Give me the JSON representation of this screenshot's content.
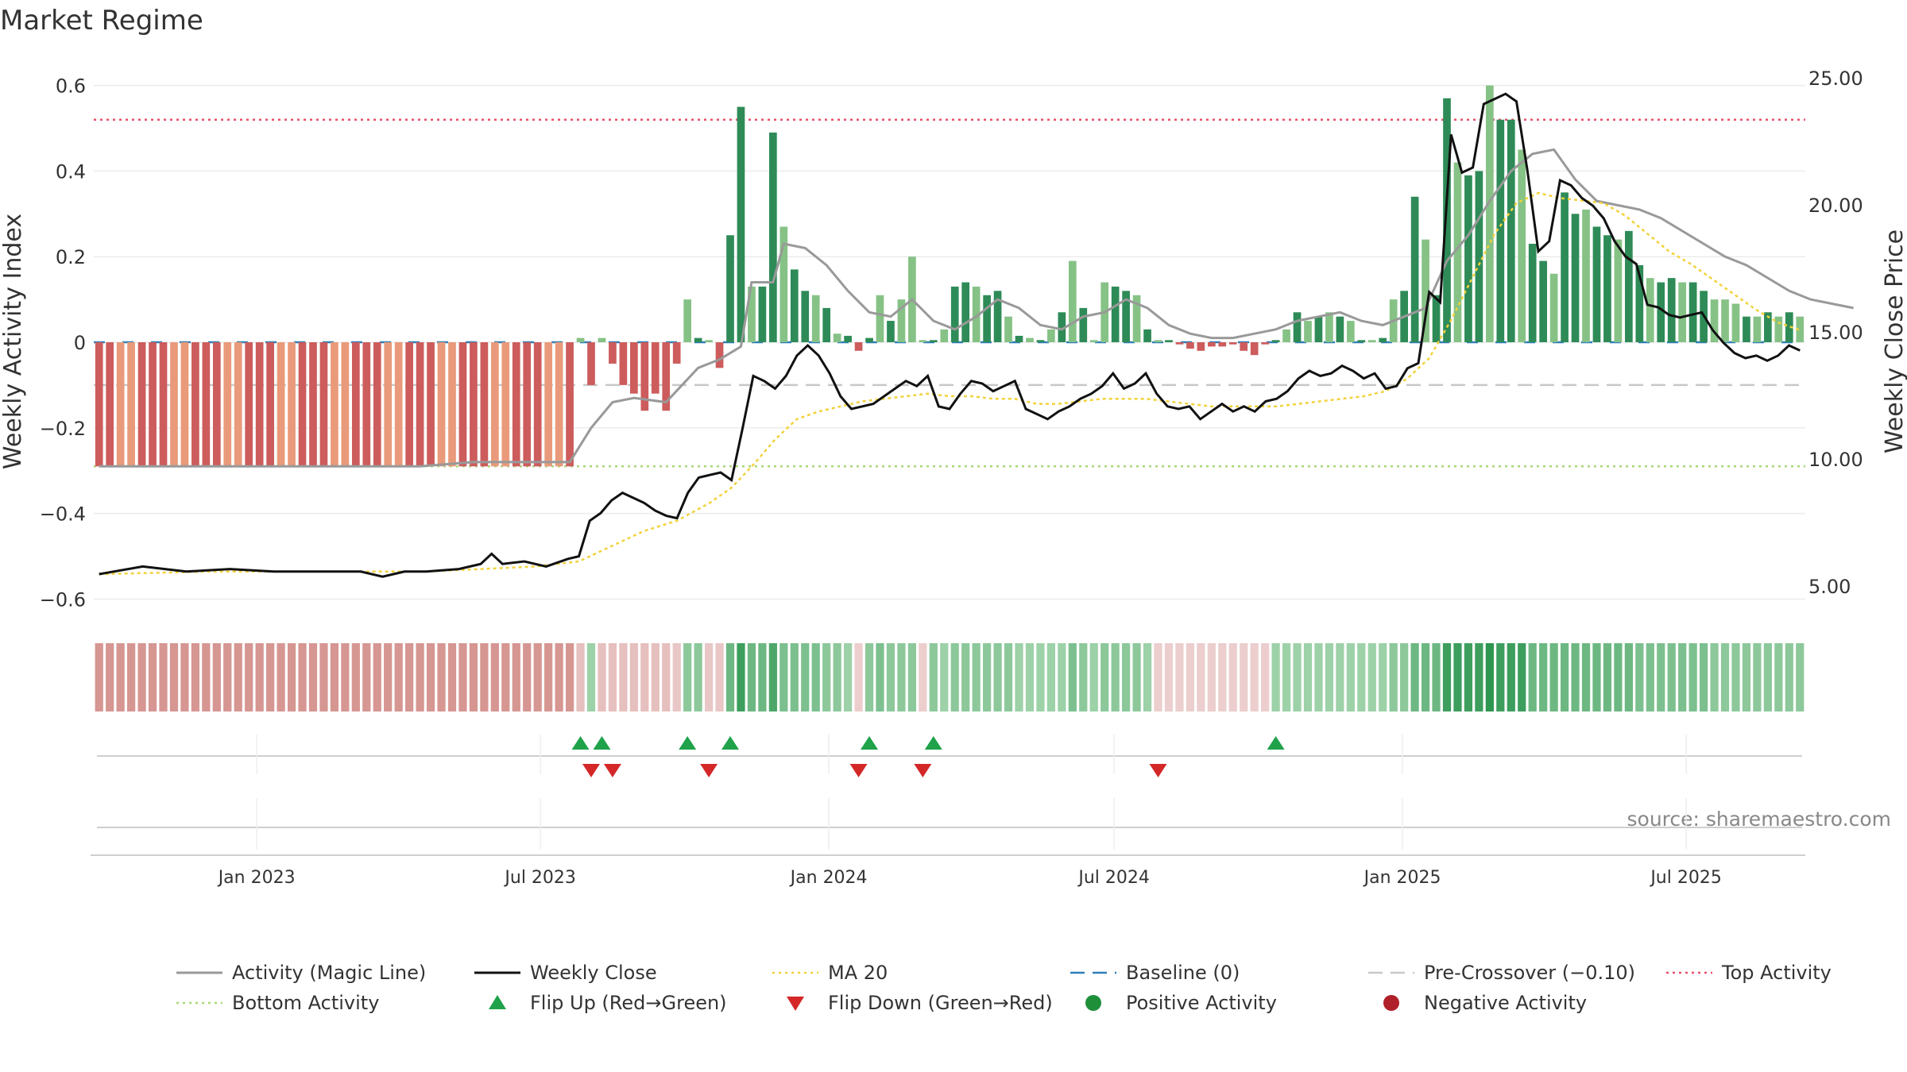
{
  "chart_data": {
    "type": "bar",
    "title": "Market Regime",
    "source": "source: sharemaestro.com",
    "x_ticks": [
      "Jan 2023",
      "Jul 2023",
      "Jan 2024",
      "Jul 2024",
      "Jan 2025",
      "Jul 2025"
    ],
    "x_range": [
      "2022-09-19",
      "2025-09-15"
    ],
    "axes": {
      "left": {
        "label": "Weekly Activity Index",
        "ticks": [
          "0.6",
          "0.4",
          "0.2",
          "0",
          "−0.2",
          "−0.4",
          "−0.6"
        ],
        "ylim": [
          -0.65,
          0.65
        ]
      },
      "right": {
        "label": "Weekly Close Price",
        "ticks": [
          "25.00",
          "20.00",
          "15.00",
          "10.00",
          "5.00"
        ],
        "ylim": [
          4.0,
          26.2
        ]
      }
    },
    "reference_lines": {
      "top_activity": 0.52,
      "bottom_activity": -0.29,
      "pre_crossover": -0.1,
      "baseline": 0
    },
    "activity_weekly": [
      -0.29,
      -0.29,
      -0.29,
      -0.29,
      -0.29,
      -0.29,
      -0.29,
      -0.29,
      -0.29,
      -0.29,
      -0.29,
      -0.29,
      -0.29,
      -0.29,
      -0.29,
      -0.29,
      -0.29,
      -0.29,
      -0.29,
      -0.29,
      -0.29,
      -0.29,
      -0.29,
      -0.29,
      -0.29,
      -0.29,
      -0.29,
      -0.29,
      -0.29,
      -0.29,
      -0.29,
      -0.29,
      -0.29,
      -0.29,
      -0.29,
      -0.29,
      -0.29,
      -0.29,
      -0.29,
      -0.29,
      -0.29,
      -0.29,
      -0.29,
      -0.29,
      -0.29,
      0.01,
      -0.1,
      0.01,
      -0.05,
      -0.1,
      -0.12,
      -0.16,
      -0.12,
      -0.16,
      -0.05,
      0.1,
      0.01,
      0.005,
      -0.06,
      0.25,
      0.55,
      0.13,
      0.13,
      0.49,
      0.27,
      0.17,
      0.12,
      0.11,
      0.08,
      0.02,
      0.015,
      -0.02,
      0.01,
      0.11,
      0.05,
      0.1,
      0.2,
      0.005,
      0.005,
      0.03,
      0.13,
      0.14,
      0.13,
      0.11,
      0.12,
      0.06,
      0.015,
      0.01,
      0.005,
      0.03,
      0.07,
      0.19,
      0.08,
      0.005,
      0.14,
      0.13,
      0.12,
      0.11,
      0.03,
      0.005,
      0.005,
      -0.005,
      -0.015,
      -0.02,
      -0.01,
      -0.01,
      -0.005,
      -0.02,
      -0.03,
      -0.005,
      0.005,
      0.03,
      0.07,
      0.05,
      0.06,
      0.07,
      0.06,
      0.05,
      0.005,
      0.005,
      0.01,
      0.1,
      0.12,
      0.34,
      0.24,
      0.11,
      0.57,
      0.42,
      0.39,
      0.4,
      0.6,
      0.52,
      0.52,
      0.45,
      0.23,
      0.19,
      0.16,
      0.35,
      0.3,
      0.31,
      0.27,
      0.25,
      0.24,
      0.26,
      0.18,
      0.15,
      0.14,
      0.15,
      0.14,
      0.14,
      0.12,
      0.1,
      0.1,
      0.09,
      0.06,
      0.06,
      0.07,
      0.06,
      0.07,
      0.06
    ],
    "magic_line": [
      [
        0,
        -0.29
      ],
      [
        10,
        -0.29
      ],
      [
        20,
        -0.29
      ],
      [
        30,
        -0.29
      ],
      [
        35,
        -0.28
      ],
      [
        40,
        -0.28
      ],
      [
        44,
        -0.28
      ],
      [
        46,
        -0.2
      ],
      [
        48,
        -0.14
      ],
      [
        50,
        -0.13
      ],
      [
        53,
        -0.14
      ],
      [
        56,
        -0.06
      ],
      [
        58,
        -0.04
      ],
      [
        60,
        -0.01
      ],
      [
        61,
        0.14
      ],
      [
        63,
        0.14
      ],
      [
        64,
        0.23
      ],
      [
        66,
        0.22
      ],
      [
        68,
        0.18
      ],
      [
        70,
        0.12
      ],
      [
        72,
        0.07
      ],
      [
        74,
        0.06
      ],
      [
        76,
        0.1
      ],
      [
        78,
        0.05
      ],
      [
        80,
        0.03
      ],
      [
        82,
        0.06
      ],
      [
        84,
        0.1
      ],
      [
        86,
        0.08
      ],
      [
        88,
        0.04
      ],
      [
        90,
        0.03
      ],
      [
        92,
        0.06
      ],
      [
        94,
        0.07
      ],
      [
        96,
        0.1
      ],
      [
        98,
        0.08
      ],
      [
        100,
        0.04
      ],
      [
        102,
        0.02
      ],
      [
        104,
        0.01
      ],
      [
        106,
        0.01
      ],
      [
        108,
        0.02
      ],
      [
        110,
        0.03
      ],
      [
        112,
        0.05
      ],
      [
        114,
        0.06
      ],
      [
        116,
        0.07
      ],
      [
        118,
        0.05
      ],
      [
        120,
        0.04
      ],
      [
        122,
        0.06
      ],
      [
        124,
        0.08
      ],
      [
        126,
        0.19
      ],
      [
        128,
        0.25
      ],
      [
        130,
        0.33
      ],
      [
        132,
        0.4
      ],
      [
        134,
        0.44
      ],
      [
        136,
        0.45
      ],
      [
        138,
        0.38
      ],
      [
        140,
        0.33
      ],
      [
        142,
        0.32
      ],
      [
        144,
        0.31
      ],
      [
        146,
        0.29
      ],
      [
        148,
        0.26
      ],
      [
        150,
        0.23
      ],
      [
        152,
        0.2
      ],
      [
        154,
        0.18
      ],
      [
        156,
        0.15
      ],
      [
        158,
        0.12
      ],
      [
        160,
        0.1
      ],
      [
        162,
        0.09
      ],
      [
        164,
        0.08
      ]
    ],
    "weekly_close": [
      [
        0,
        5.5
      ],
      [
        4,
        5.8
      ],
      [
        8,
        5.6
      ],
      [
        12,
        5.7
      ],
      [
        16,
        5.6
      ],
      [
        20,
        5.6
      ],
      [
        24,
        5.6
      ],
      [
        26,
        5.4
      ],
      [
        28,
        5.6
      ],
      [
        30,
        5.6
      ],
      [
        33,
        5.7
      ],
      [
        35,
        5.9
      ],
      [
        36,
        6.3
      ],
      [
        37,
        5.9
      ],
      [
        39,
        6.0
      ],
      [
        41,
        5.8
      ],
      [
        43,
        6.1
      ],
      [
        44,
        6.2
      ],
      [
        45,
        7.6
      ],
      [
        46,
        7.9
      ],
      [
        47,
        8.4
      ],
      [
        48,
        8.7
      ],
      [
        49,
        8.5
      ],
      [
        50,
        8.3
      ],
      [
        51,
        8.0
      ],
      [
        52,
        7.8
      ],
      [
        53,
        7.7
      ],
      [
        54,
        8.7
      ],
      [
        55,
        9.3
      ],
      [
        56,
        9.4
      ],
      [
        57,
        9.5
      ],
      [
        58,
        9.2
      ],
      [
        59,
        11.2
      ],
      [
        60,
        13.3
      ],
      [
        61,
        13.1
      ],
      [
        62,
        12.8
      ],
      [
        63,
        13.3
      ],
      [
        64,
        14.1
      ],
      [
        65,
        14.5
      ],
      [
        66,
        14.1
      ],
      [
        67,
        13.4
      ],
      [
        68,
        12.5
      ],
      [
        69,
        12.0
      ],
      [
        70,
        12.1
      ],
      [
        71,
        12.2
      ],
      [
        72,
        12.5
      ],
      [
        73,
        12.8
      ],
      [
        74,
        13.1
      ],
      [
        75,
        12.9
      ],
      [
        76,
        13.3
      ],
      [
        77,
        12.1
      ],
      [
        78,
        12.0
      ],
      [
        79,
        12.6
      ],
      [
        80,
        13.1
      ],
      [
        81,
        13.0
      ],
      [
        82,
        12.7
      ],
      [
        83,
        12.9
      ],
      [
        84,
        13.1
      ],
      [
        85,
        12.0
      ],
      [
        86,
        11.8
      ],
      [
        87,
        11.6
      ],
      [
        88,
        11.9
      ],
      [
        89,
        12.1
      ],
      [
        90,
        12.4
      ],
      [
        91,
        12.6
      ],
      [
        92,
        12.9
      ],
      [
        93,
        13.4
      ],
      [
        94,
        12.8
      ],
      [
        95,
        13.0
      ],
      [
        96,
        13.4
      ],
      [
        97,
        12.6
      ],
      [
        98,
        12.1
      ],
      [
        99,
        12.0
      ],
      [
        100,
        12.1
      ],
      [
        101,
        11.6
      ],
      [
        102,
        11.9
      ],
      [
        103,
        12.2
      ],
      [
        104,
        11.9
      ],
      [
        105,
        12.1
      ],
      [
        106,
        11.9
      ],
      [
        107,
        12.3
      ],
      [
        108,
        12.4
      ],
      [
        109,
        12.7
      ],
      [
        110,
        13.2
      ],
      [
        111,
        13.5
      ],
      [
        112,
        13.3
      ],
      [
        113,
        13.4
      ],
      [
        114,
        13.7
      ],
      [
        115,
        13.5
      ],
      [
        116,
        13.2
      ],
      [
        117,
        13.4
      ],
      [
        118,
        12.8
      ],
      [
        119,
        12.9
      ],
      [
        120,
        13.6
      ],
      [
        121,
        13.8
      ],
      [
        122,
        16.6
      ],
      [
        123,
        16.2
      ],
      [
        124,
        22.8
      ],
      [
        125,
        21.3
      ],
      [
        126,
        21.5
      ],
      [
        127,
        24.0
      ],
      [
        128,
        24.2
      ],
      [
        129,
        24.4
      ],
      [
        130,
        24.1
      ],
      [
        131,
        21.4
      ],
      [
        132,
        18.2
      ],
      [
        133,
        18.6
      ],
      [
        134,
        21.0
      ],
      [
        135,
        20.8
      ],
      [
        136,
        20.3
      ],
      [
        137,
        20.0
      ],
      [
        138,
        19.5
      ],
      [
        139,
        18.6
      ],
      [
        140,
        18.0
      ],
      [
        141,
        17.7
      ],
      [
        142,
        16.1
      ],
      [
        143,
        16.0
      ],
      [
        144,
        15.7
      ],
      [
        145,
        15.6
      ],
      [
        146,
        15.7
      ],
      [
        147,
        15.8
      ],
      [
        148,
        15.1
      ],
      [
        149,
        14.6
      ],
      [
        150,
        14.2
      ],
      [
        151,
        14.0
      ],
      [
        152,
        14.1
      ],
      [
        153,
        13.9
      ],
      [
        154,
        14.1
      ],
      [
        155,
        14.5
      ],
      [
        156,
        14.3
      ]
    ],
    "ma20": [
      [
        0,
        5.5
      ],
      [
        10,
        5.6
      ],
      [
        20,
        5.6
      ],
      [
        30,
        5.6
      ],
      [
        40,
        5.8
      ],
      [
        44,
        6.0
      ],
      [
        47,
        6.6
      ],
      [
        50,
        7.2
      ],
      [
        53,
        7.6
      ],
      [
        56,
        8.3
      ],
      [
        58,
        8.9
      ],
      [
        60,
        9.8
      ],
      [
        62,
        10.8
      ],
      [
        64,
        11.6
      ],
      [
        66,
        11.9
      ],
      [
        68,
        12.1
      ],
      [
        70,
        12.3
      ],
      [
        72,
        12.4
      ],
      [
        74,
        12.5
      ],
      [
        76,
        12.6
      ],
      [
        78,
        12.5
      ],
      [
        80,
        12.5
      ],
      [
        82,
        12.4
      ],
      [
        84,
        12.4
      ],
      [
        86,
        12.2
      ],
      [
        88,
        12.2
      ],
      [
        90,
        12.3
      ],
      [
        92,
        12.4
      ],
      [
        94,
        12.4
      ],
      [
        96,
        12.4
      ],
      [
        98,
        12.3
      ],
      [
        100,
        12.2
      ],
      [
        102,
        12.1
      ],
      [
        104,
        12.1
      ],
      [
        106,
        12.1
      ],
      [
        108,
        12.1
      ],
      [
        110,
        12.2
      ],
      [
        112,
        12.3
      ],
      [
        114,
        12.4
      ],
      [
        116,
        12.5
      ],
      [
        118,
        12.7
      ],
      [
        120,
        13.2
      ],
      [
        122,
        14.0
      ],
      [
        124,
        15.5
      ],
      [
        126,
        17.2
      ],
      [
        128,
        18.9
      ],
      [
        130,
        20.1
      ],
      [
        132,
        20.5
      ],
      [
        134,
        20.3
      ],
      [
        136,
        20.2
      ],
      [
        138,
        20.1
      ],
      [
        140,
        19.6
      ],
      [
        142,
        18.9
      ],
      [
        144,
        18.2
      ],
      [
        146,
        17.7
      ],
      [
        148,
        17.1
      ],
      [
        150,
        16.5
      ],
      [
        152,
        15.9
      ],
      [
        154,
        15.4
      ],
      [
        156,
        15.1
      ]
    ],
    "regime_strip": [
      -1,
      -1,
      -1,
      -1,
      -1,
      -1,
      -1,
      -1,
      -1,
      -1,
      -1,
      -1,
      -1,
      -1,
      -1,
      -1,
      -1,
      -1,
      -1,
      -1,
      -1,
      -1,
      -1,
      -1,
      -1,
      -1,
      -1,
      -1,
      -1,
      -1,
      -1,
      -1,
      -1,
      -1,
      -1,
      -1,
      -1,
      -1,
      -1,
      -1,
      -1,
      -1,
      -1,
      -1,
      -1,
      -0.4,
      0.3,
      -0.4,
      -0.4,
      -0.4,
      -0.4,
      -0.4,
      -0.4,
      -0.4,
      -0.3,
      0.4,
      0.4,
      -0.3,
      -0.3,
      0.6,
      0.9,
      0.6,
      0.6,
      0.8,
      0.5,
      0.5,
      0.5,
      0.5,
      0.4,
      0.4,
      0.3,
      -0.2,
      0.4,
      0.5,
      0.4,
      0.4,
      0.4,
      -0.2,
      0.4,
      0.3,
      0.4,
      0.4,
      0.4,
      0.4,
      0.4,
      0.4,
      0.3,
      0.3,
      0.3,
      0.3,
      0.3,
      0.5,
      0.4,
      0.3,
      0.4,
      0.4,
      0.4,
      0.4,
      0.3,
      -0.2,
      -0.2,
      -0.2,
      -0.2,
      -0.2,
      -0.2,
      -0.2,
      -0.2,
      -0.2,
      -0.2,
      -0.2,
      0.3,
      0.3,
      0.3,
      0.3,
      0.3,
      0.3,
      0.3,
      0.3,
      0.3,
      0.3,
      0.3,
      0.4,
      0.4,
      0.6,
      0.6,
      0.6,
      0.9,
      0.9,
      0.9,
      0.9,
      1,
      0.9,
      0.9,
      0.9,
      0.6,
      0.6,
      0.6,
      0.6,
      0.6,
      0.6,
      0.6,
      0.6,
      0.6,
      0.6,
      0.5,
      0.5,
      0.5,
      0.5,
      0.5,
      0.5,
      0.5,
      0.4,
      0.4,
      0.4,
      0.4,
      0.4,
      0.4,
      0.4,
      0.4,
      0.4
    ],
    "flip_up": [
      45,
      47,
      55,
      59,
      72,
      78,
      110
    ],
    "flip_down": [
      46,
      48,
      57,
      71,
      77,
      99
    ],
    "legend": [
      {
        "label": "Activity (Magic Line)",
        "kind": "line",
        "color": "#999999"
      },
      {
        "label": "Weekly Close",
        "kind": "line",
        "color": "#111111"
      },
      {
        "label": "MA 20",
        "kind": "dotted",
        "color": "#f2d23a"
      },
      {
        "label": "Baseline (0)",
        "kind": "dashed",
        "color": "#2f7fb8"
      },
      {
        "label": "Pre-Crossover (−0.10)",
        "kind": "dashed",
        "color": "#c8c8c8"
      },
      {
        "label": "Top Activity",
        "kind": "dotted",
        "color": "#e8506a"
      },
      {
        "label": "Bottom Activity",
        "kind": "dotted",
        "color": "#a8d878"
      },
      {
        "label": "Flip Up (Red→Green)",
        "kind": "tri-up",
        "color": "#1fa24a"
      },
      {
        "label": "Flip Down (Green→Red)",
        "kind": "tri-down",
        "color": "#d42828"
      },
      {
        "label": "Positive Activity",
        "kind": "dot",
        "color": "#1f8f3a"
      },
      {
        "label": "Negative Activity",
        "kind": "dot",
        "color": "#b0202a"
      }
    ],
    "colors": {
      "bar_green_dark": "#2e8b57",
      "bar_green_light": "#86c286",
      "bar_red_dark": "#cd5c5c",
      "bar_red_light": "#e99a7a"
    }
  }
}
